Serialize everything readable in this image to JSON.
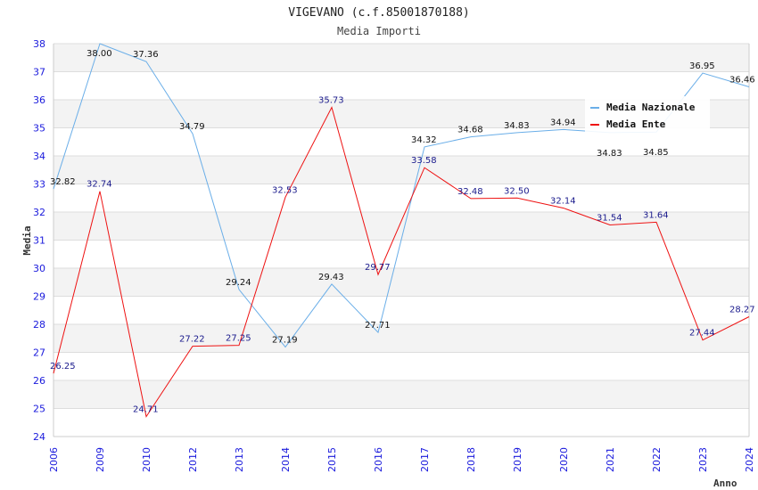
{
  "chart_data": {
    "type": "line",
    "title": "VIGEVANO (c.f.85001870188)",
    "subtitle": "Media Importi",
    "xlabel": "Anno",
    "ylabel": "Media",
    "ylim": [
      24,
      38
    ],
    "yticks": [
      24,
      25,
      26,
      27,
      28,
      29,
      30,
      31,
      32,
      33,
      34,
      35,
      36,
      37,
      38
    ],
    "categories": [
      "2006",
      "2009",
      "2010",
      "2012",
      "2013",
      "2014",
      "2015",
      "2016",
      "2017",
      "2018",
      "2019",
      "2020",
      "2021",
      "2022",
      "2023",
      "2024"
    ],
    "grid": true,
    "legend_position": "top-right",
    "series": [
      {
        "name": "Media Nazionale",
        "color": "#6aaee8",
        "label_color": "#111111",
        "values": [
          32.82,
          38.0,
          37.36,
          34.79,
          29.24,
          27.19,
          29.43,
          27.71,
          34.32,
          34.68,
          34.83,
          34.94,
          34.83,
          34.85,
          36.95,
          36.46
        ],
        "labels": [
          "32.82",
          "38.00",
          "37.36",
          "34.79",
          "29.24",
          "27.19",
          "29.43",
          "27.71",
          "34.32",
          "34.68",
          "34.83",
          "34.94",
          "34.83",
          "34.85",
          "36.95",
          "36.46"
        ]
      },
      {
        "name": "Media Ente",
        "color": "#ee1111",
        "label_color": "#1a1a8c",
        "values": [
          26.25,
          32.74,
          24.71,
          27.22,
          27.25,
          32.53,
          35.73,
          29.77,
          33.58,
          32.48,
          32.5,
          32.14,
          31.54,
          31.64,
          27.44,
          28.27
        ],
        "labels": [
          "26.25",
          "32.74",
          "24.71",
          "27.22",
          "27.25",
          "32.53",
          "35.73",
          "29.77",
          "33.58",
          "32.48",
          "32.50",
          "32.14",
          "31.54",
          "31.64",
          "27.44",
          "28.27"
        ]
      }
    ]
  }
}
